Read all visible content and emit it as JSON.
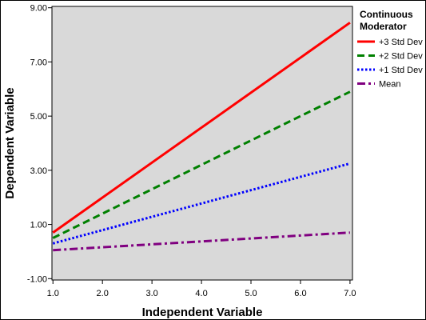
{
  "chart_data": {
    "type": "line",
    "xlabel": "Independent Variable",
    "ylabel": "Dependent Variable",
    "xlim": [
      0.98,
      7.05
    ],
    "ylim": [
      -1.05,
      9.05
    ],
    "x_ticks": [
      "1.0",
      "2.0",
      "3.0",
      "4.0",
      "5.0",
      "6.0",
      "7.0"
    ],
    "x_tick_values": [
      1,
      2,
      3,
      4,
      5,
      6,
      7
    ],
    "y_ticks": [
      "-1.00",
      "1.00",
      "3.00",
      "5.00",
      "7.00",
      "9.00"
    ],
    "y_tick_values": [
      -1,
      1,
      3,
      5,
      7,
      9
    ],
    "grid": false,
    "legend_title": [
      "Continuous",
      "Moderator"
    ],
    "legend_position": "right",
    "plot_background": "#d9d9d9",
    "series": [
      {
        "name": "+3 Std Dev",
        "x": [
          1.0,
          7.0
        ],
        "values": [
          0.7,
          8.45
        ],
        "color": "#ff0000",
        "dash": "solid"
      },
      {
        "name": "+2 Std Dev",
        "x": [
          1.0,
          7.0
        ],
        "values": [
          0.5,
          5.9
        ],
        "color": "#008000",
        "dash": "dashed"
      },
      {
        "name": "+1 Std Dev",
        "x": [
          1.0,
          7.0
        ],
        "values": [
          0.3,
          3.25
        ],
        "color": "#0000ff",
        "dash": "dotted"
      },
      {
        "name": "Mean",
        "x": [
          1.0,
          7.0
        ],
        "values": [
          0.05,
          0.7
        ],
        "color": "#800080",
        "dash": "dash-dot"
      }
    ]
  }
}
